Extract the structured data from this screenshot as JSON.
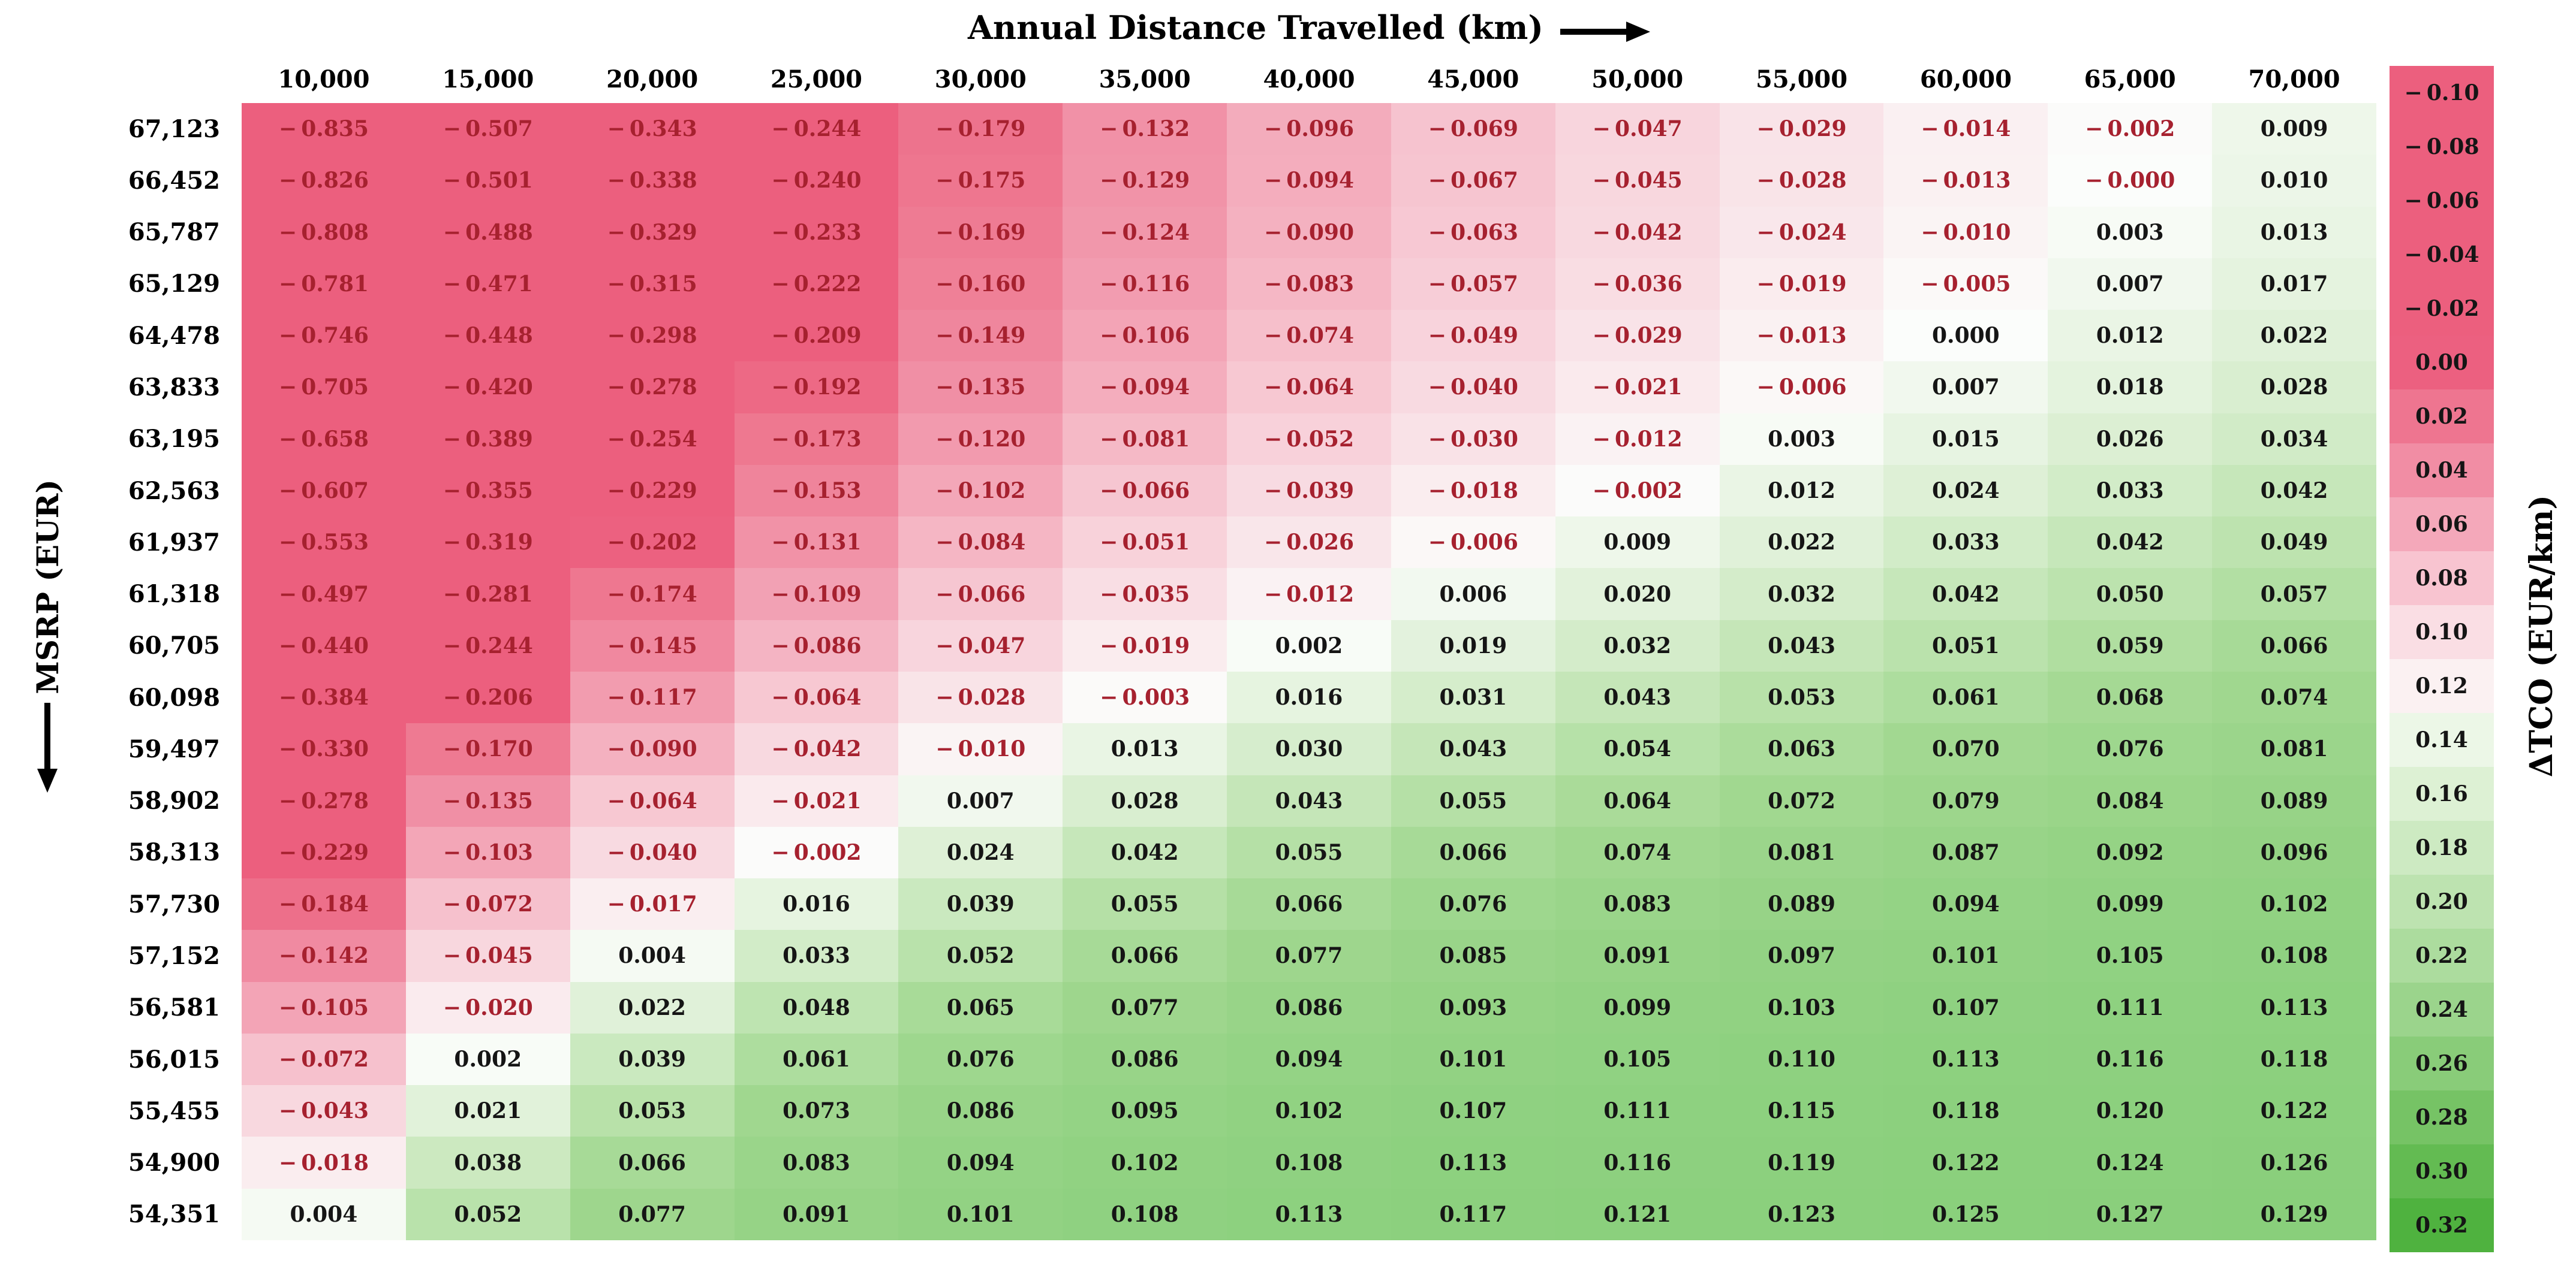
{
  "title": "Annual Distance Travelled (km)",
  "y_axis_label": "MSRP (EUR)",
  "colorbar_label": "ΔTCO (EUR/km)",
  "icons": {
    "x_axis_arrow": "right-arrow",
    "y_axis_arrow": "down-arrow"
  },
  "colors": {
    "background": "#FFFFFF",
    "negative_text": "#A6212F",
    "positive_text": "#151515",
    "label_text": "#000000",
    "saturated_negative": "#EC5F7E",
    "saturated_positive": "#4FB23F"
  },
  "chart_data": {
    "type": "heatmap",
    "title": "Annual Distance Travelled (km)",
    "xlabel": "Annual Distance Travelled (km)",
    "ylabel": "MSRP (EUR)",
    "legend_label": "ΔTCO (EUR/km)",
    "grid": false,
    "legend_position": "right",
    "columns": [
      "10,000",
      "15,000",
      "20,000",
      "25,000",
      "30,000",
      "35,000",
      "40,000",
      "45,000",
      "50,000",
      "55,000",
      "60,000",
      "65,000",
      "70,000"
    ],
    "rows": [
      "67,123",
      "66,452",
      "65,787",
      "65,129",
      "64,478",
      "63,833",
      "63,195",
      "62,563",
      "61,937",
      "61,318",
      "60,705",
      "60,098",
      "59,497",
      "58,902",
      "58,313",
      "57,730",
      "57,152",
      "56,581",
      "56,015",
      "55,455",
      "54,900",
      "54,351"
    ],
    "values": [
      [
        "-0.835",
        "-0.507",
        "-0.343",
        "-0.244",
        "-0.179",
        "-0.132",
        "-0.096",
        "-0.069",
        "-0.047",
        "-0.029",
        "-0.014",
        "-0.002",
        "0.009"
      ],
      [
        "-0.826",
        "-0.501",
        "-0.338",
        "-0.240",
        "-0.175",
        "-0.129",
        "-0.094",
        "-0.067",
        "-0.045",
        "-0.028",
        "-0.013",
        "-0.000",
        "0.010"
      ],
      [
        "-0.808",
        "-0.488",
        "-0.329",
        "-0.233",
        "-0.169",
        "-0.124",
        "-0.090",
        "-0.063",
        "-0.042",
        "-0.024",
        "-0.010",
        "0.003",
        "0.013"
      ],
      [
        "-0.781",
        "-0.471",
        "-0.315",
        "-0.222",
        "-0.160",
        "-0.116",
        "-0.083",
        "-0.057",
        "-0.036",
        "-0.019",
        "-0.005",
        "0.007",
        "0.017"
      ],
      [
        "-0.746",
        "-0.448",
        "-0.298",
        "-0.209",
        "-0.149",
        "-0.106",
        "-0.074",
        "-0.049",
        "-0.029",
        "-0.013",
        "0.000",
        "0.012",
        "0.022"
      ],
      [
        "-0.705",
        "-0.420",
        "-0.278",
        "-0.192",
        "-0.135",
        "-0.094",
        "-0.064",
        "-0.040",
        "-0.021",
        "-0.006",
        "0.007",
        "0.018",
        "0.028"
      ],
      [
        "-0.658",
        "-0.389",
        "-0.254",
        "-0.173",
        "-0.120",
        "-0.081",
        "-0.052",
        "-0.030",
        "-0.012",
        "0.003",
        "0.015",
        "0.026",
        "0.034"
      ],
      [
        "-0.607",
        "-0.355",
        "-0.229",
        "-0.153",
        "-0.102",
        "-0.066",
        "-0.039",
        "-0.018",
        "-0.002",
        "0.012",
        "0.024",
        "0.033",
        "0.042"
      ],
      [
        "-0.553",
        "-0.319",
        "-0.202",
        "-0.131",
        "-0.084",
        "-0.051",
        "-0.026",
        "-0.006",
        "0.009",
        "0.022",
        "0.033",
        "0.042",
        "0.049"
      ],
      [
        "-0.497",
        "-0.281",
        "-0.174",
        "-0.109",
        "-0.066",
        "-0.035",
        "-0.012",
        "0.006",
        "0.020",
        "0.032",
        "0.042",
        "0.050",
        "0.057"
      ],
      [
        "-0.440",
        "-0.244",
        "-0.145",
        "-0.086",
        "-0.047",
        "-0.019",
        "0.002",
        "0.019",
        "0.032",
        "0.043",
        "0.051",
        "0.059",
        "0.066"
      ],
      [
        "-0.384",
        "-0.206",
        "-0.117",
        "-0.064",
        "-0.028",
        "-0.003",
        "0.016",
        "0.031",
        "0.043",
        "0.053",
        "0.061",
        "0.068",
        "0.074"
      ],
      [
        "-0.330",
        "-0.170",
        "-0.090",
        "-0.042",
        "-0.010",
        "0.013",
        "0.030",
        "0.043",
        "0.054",
        "0.063",
        "0.070",
        "0.076",
        "0.081"
      ],
      [
        "-0.278",
        "-0.135",
        "-0.064",
        "-0.021",
        "0.007",
        "0.028",
        "0.043",
        "0.055",
        "0.064",
        "0.072",
        "0.079",
        "0.084",
        "0.089"
      ],
      [
        "-0.229",
        "-0.103",
        "-0.040",
        "-0.002",
        "0.024",
        "0.042",
        "0.055",
        "0.066",
        "0.074",
        "0.081",
        "0.087",
        "0.092",
        "0.096"
      ],
      [
        "-0.184",
        "-0.072",
        "-0.017",
        "0.016",
        "0.039",
        "0.055",
        "0.066",
        "0.076",
        "0.083",
        "0.089",
        "0.094",
        "0.099",
        "0.102"
      ],
      [
        "-0.142",
        "-0.045",
        "0.004",
        "0.033",
        "0.052",
        "0.066",
        "0.077",
        "0.085",
        "0.091",
        "0.097",
        "0.101",
        "0.105",
        "0.108"
      ],
      [
        "-0.105",
        "-0.020",
        "0.022",
        "0.048",
        "0.065",
        "0.077",
        "0.086",
        "0.093",
        "0.099",
        "0.103",
        "0.107",
        "0.111",
        "0.113"
      ],
      [
        "-0.072",
        "0.002",
        "0.039",
        "0.061",
        "0.076",
        "0.086",
        "0.094",
        "0.101",
        "0.105",
        "0.110",
        "0.113",
        "0.116",
        "0.118"
      ],
      [
        "-0.043",
        "0.021",
        "0.053",
        "0.073",
        "0.086",
        "0.095",
        "0.102",
        "0.107",
        "0.111",
        "0.115",
        "0.118",
        "0.120",
        "0.122"
      ],
      [
        "-0.018",
        "0.038",
        "0.066",
        "0.083",
        "0.094",
        "0.102",
        "0.108",
        "0.113",
        "0.116",
        "0.119",
        "0.122",
        "0.124",
        "0.126"
      ],
      [
        "0.004",
        "0.052",
        "0.077",
        "0.091",
        "0.101",
        "0.108",
        "0.113",
        "0.117",
        "0.121",
        "0.123",
        "0.125",
        "0.127",
        "0.129"
      ]
    ],
    "colormap_anchors": {
      "neg": [
        [
          0,
          "#FBFDFB"
        ],
        [
          0.03,
          "#F9E2E7"
        ],
        [
          0.06,
          "#F7CBD5"
        ],
        [
          0.1,
          "#F3A8B9"
        ],
        [
          0.14,
          "#F08BA2"
        ],
        [
          0.17,
          "#EE7A92"
        ],
        [
          0.205,
          "#EC5F7E"
        ]
      ],
      "pos": [
        [
          0,
          "#FBFDFB"
        ],
        [
          0.01,
          "#ECF6E8"
        ],
        [
          0.025,
          "#DDF0D5"
        ],
        [
          0.04,
          "#C9E8BD"
        ],
        [
          0.055,
          "#B5E0A6"
        ],
        [
          0.07,
          "#A2D891"
        ],
        [
          0.09,
          "#96D386"
        ],
        [
          0.11,
          "#8ED180"
        ],
        [
          0.13,
          "#89CF7B"
        ]
      ]
    },
    "colorbar": {
      "labels": [
        "-0.10",
        "-0.08",
        "-0.06",
        "-0.04",
        "-0.02",
        "0.00",
        "0.02",
        "0.04",
        "0.06",
        "0.08",
        "0.10",
        "0.12",
        "0.14",
        "0.16",
        "0.18",
        "0.20",
        "0.22",
        "0.24",
        "0.26",
        "0.28",
        "0.30",
        "0.32"
      ],
      "colors": [
        "#EC5F7E",
        "#EC5F7E",
        "#EC5F7E",
        "#EC5F7E",
        "#EC5F7E",
        "#EC6080",
        "#EE7590",
        "#F18DA4",
        "#F4A8BA",
        "#F8C4D0",
        "#FADEE4",
        "#FBF1F2",
        "#ECF7E7",
        "#DDF1D4",
        "#CDEAC2",
        "#BDE3B0",
        "#ACDC9E",
        "#9BD48C",
        "#89CC79",
        "#76C365",
        "#63BB52",
        "#4FB23F"
      ]
    }
  }
}
